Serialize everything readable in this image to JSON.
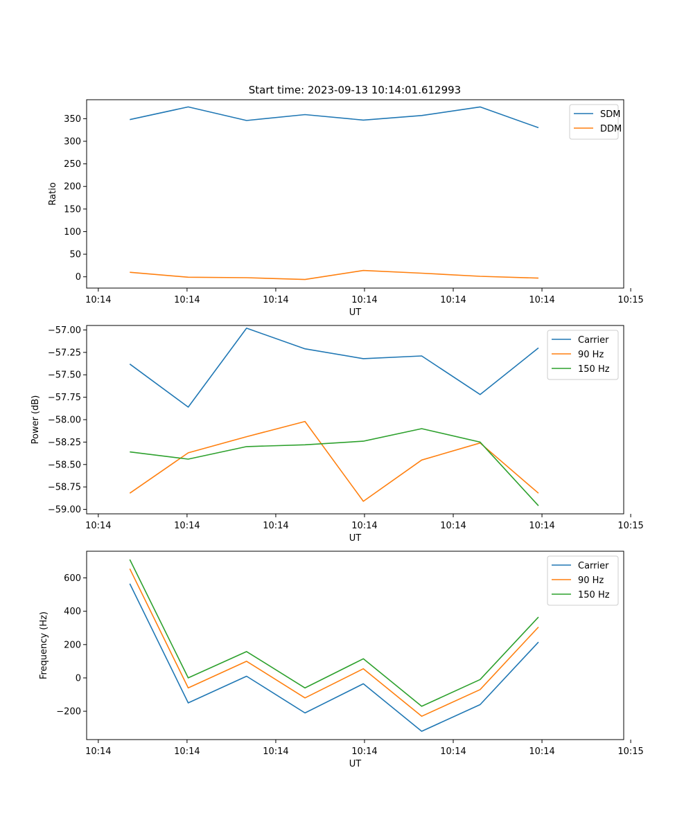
{
  "figure_title": "Start time: 2023-09-13 10:14:01.612993",
  "chart_data": [
    {
      "type": "line",
      "name": "ratio-panel",
      "xlabel": "UT",
      "ylabel": "Ratio",
      "x": [
        1,
        2,
        3,
        4,
        5,
        6,
        7,
        8
      ],
      "xlim": [
        0.26,
        9.46
      ],
      "x_ticks": [
        0.46,
        1.98,
        3.5,
        5.02,
        6.54,
        8.06,
        9.58
      ],
      "x_tick_labels": [
        "10:14",
        "10:14",
        "10:14",
        "10:14",
        "10:14",
        "10:14",
        "10:15"
      ],
      "ylim": [
        -25,
        392
      ],
      "y_ticks": [
        0,
        50,
        100,
        150,
        200,
        250,
        300,
        350
      ],
      "y_tick_labels": [
        "0",
        "50",
        "100",
        "150",
        "200",
        "250",
        "300",
        "350"
      ],
      "legend_position": "top-right",
      "series": [
        {
          "name": "SDM",
          "color": "#1f77b4",
          "values": [
            348,
            376,
            346,
            359,
            347,
            357,
            376,
            330
          ]
        },
        {
          "name": "DDM",
          "color": "#ff7f0e",
          "values": [
            10,
            -1,
            -2,
            -6,
            14,
            8,
            1,
            -3
          ]
        }
      ]
    },
    {
      "type": "line",
      "name": "power-panel",
      "xlabel": "UT",
      "ylabel": "Power (dB)",
      "x": [
        1,
        2,
        3,
        4,
        5,
        6,
        7,
        8
      ],
      "xlim": [
        0.26,
        9.46
      ],
      "x_ticks": [
        0.46,
        1.98,
        3.5,
        5.02,
        6.54,
        8.06,
        9.58
      ],
      "x_tick_labels": [
        "10:14",
        "10:14",
        "10:14",
        "10:14",
        "10:14",
        "10:14",
        "10:15"
      ],
      "ylim": [
        -59.05,
        -56.95
      ],
      "y_ticks": [
        -59.0,
        -58.75,
        -58.5,
        -58.25,
        -58.0,
        -57.75,
        -57.5,
        -57.25,
        -57.0
      ],
      "y_tick_labels": [
        "−59.00",
        "−58.75",
        "−58.50",
        "−58.25",
        "−58.00",
        "−57.75",
        "−57.50",
        "−57.25",
        "−57.00"
      ],
      "legend_position": "top-right",
      "series": [
        {
          "name": "Carrier",
          "color": "#1f77b4",
          "values": [
            -57.38,
            -57.86,
            -56.98,
            -57.21,
            -57.32,
            -57.29,
            -57.72,
            -57.2
          ]
        },
        {
          "name": "90 Hz",
          "color": "#ff7f0e",
          "values": [
            -58.82,
            -58.37,
            -58.19,
            -58.02,
            -58.91,
            -58.45,
            -58.26,
            -58.82
          ]
        },
        {
          "name": "150 Hz",
          "color": "#2ca02c",
          "values": [
            -58.36,
            -58.44,
            -58.3,
            -58.28,
            -58.24,
            -58.1,
            -58.25,
            -58.96
          ]
        }
      ]
    },
    {
      "type": "line",
      "name": "frequency-panel",
      "xlabel": "UT",
      "ylabel": "Frequency (Hz)",
      "x": [
        1,
        2,
        3,
        4,
        5,
        6,
        7,
        8
      ],
      "xlim": [
        0.26,
        9.46
      ],
      "x_ticks": [
        0.46,
        1.98,
        3.5,
        5.02,
        6.54,
        8.06,
        9.58
      ],
      "x_tick_labels": [
        "10:14",
        "10:14",
        "10:14",
        "10:14",
        "10:14",
        "10:14",
        "10:15"
      ],
      "ylim": [
        -370,
        760
      ],
      "y_ticks": [
        -200,
        0,
        200,
        400,
        600
      ],
      "y_tick_labels": [
        "−200",
        "0",
        "200",
        "400",
        "600"
      ],
      "legend_position": "top-right",
      "series": [
        {
          "name": "Carrier",
          "color": "#1f77b4",
          "values": [
            565,
            -150,
            10,
            -210,
            -35,
            -320,
            -160,
            215
          ]
        },
        {
          "name": "90 Hz",
          "color": "#ff7f0e",
          "values": [
            655,
            -60,
            100,
            -120,
            55,
            -230,
            -70,
            305
          ]
        },
        {
          "name": "150 Hz",
          "color": "#2ca02c",
          "values": [
            710,
            0,
            158,
            -60,
            115,
            -170,
            -10,
            365
          ]
        }
      ]
    }
  ]
}
